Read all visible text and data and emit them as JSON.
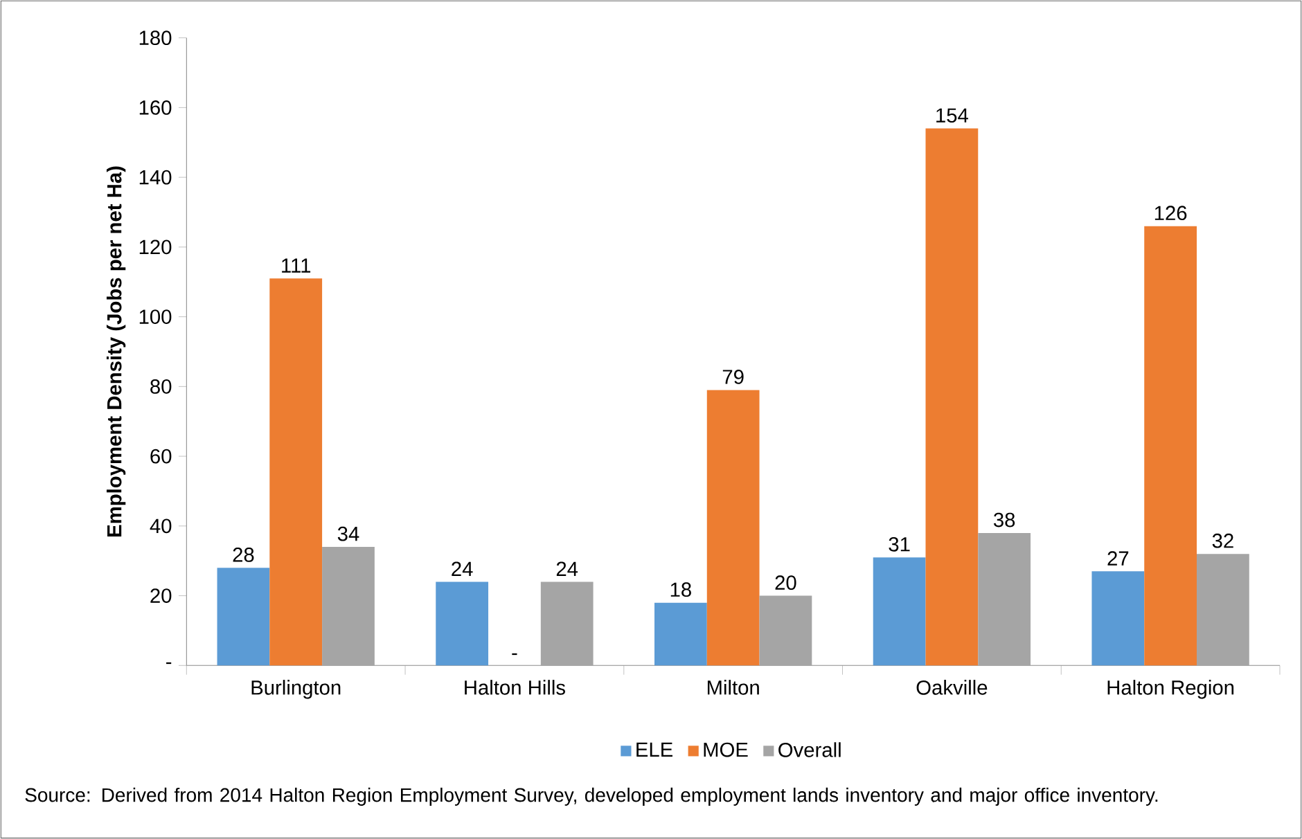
{
  "chart_data": {
    "type": "bar",
    "ylabel": "Employment Density  (Jobs per net Ha)",
    "categories": [
      "Burlington",
      "Halton Hills",
      "Milton",
      "Oakville",
      "Halton Region"
    ],
    "series": [
      {
        "name": "ELE",
        "color": "#5b9bd5",
        "values": [
          28,
          24,
          18,
          31,
          27
        ],
        "value_labels": [
          "28",
          "24",
          "18",
          "31",
          "27"
        ]
      },
      {
        "name": "MOE",
        "color": "#ed7d31",
        "values": [
          111,
          0,
          79,
          154,
          126
        ],
        "value_labels": [
          "111",
          "-",
          "79",
          "154",
          "126"
        ]
      },
      {
        "name": "Overall",
        "color": "#a5a5a5",
        "values": [
          34,
          24,
          20,
          38,
          32
        ],
        "value_labels": [
          "34",
          "24",
          "20",
          "38",
          "32"
        ]
      }
    ],
    "ylim": [
      0,
      180
    ],
    "yticks": [
      {
        "value": 0,
        "label": "-"
      },
      20,
      40,
      60,
      80,
      100,
      120,
      140,
      160,
      180
    ],
    "grid": false,
    "legend": "bottom",
    "annotations": [
      "Source: Derived from 2014 Halton Region Employment Survey, developed employment lands inventory and major office inventory."
    ]
  }
}
